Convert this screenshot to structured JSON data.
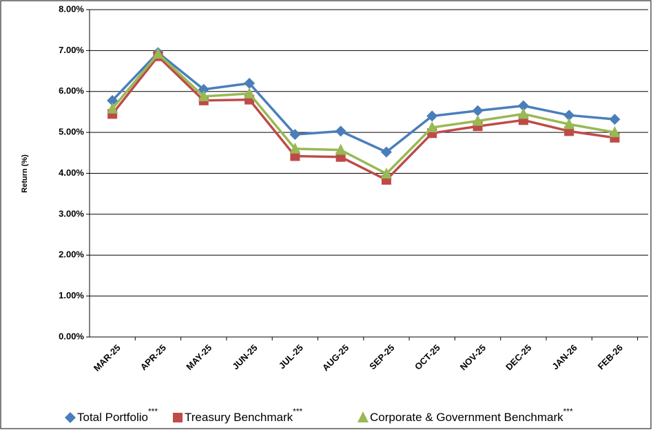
{
  "chart_data": {
    "type": "line",
    "y_label": "Return (%)",
    "categories": [
      "MAR-25",
      "APR-25",
      "MAY-25",
      "JUN-25",
      "JUL-25",
      "AUG-25",
      "SEP-25",
      "OCT-25",
      "NOV-25",
      "DEC-25",
      "JAN-26",
      "FEB-26"
    ],
    "series": [
      {
        "name": "Total Portfolio",
        "color": "#4a7ebb",
        "marker": "diamond",
        "values": [
          5.78,
          6.95,
          6.05,
          6.2,
          4.95,
          5.03,
          4.52,
          5.4,
          5.53,
          5.65,
          5.42,
          5.32
        ]
      },
      {
        "name": "Treasury Benchmark",
        "color": "#be4b48",
        "marker": "square",
        "values": [
          5.45,
          6.86,
          5.78,
          5.8,
          4.42,
          4.4,
          3.84,
          4.98,
          5.15,
          5.3,
          5.03,
          4.87
        ]
      },
      {
        "name": "Corporate & Government Benchmark",
        "color": "#98b954",
        "marker": "triangle",
        "values": [
          5.58,
          6.92,
          5.88,
          5.95,
          4.6,
          4.57,
          3.99,
          5.12,
          5.28,
          5.45,
          5.2,
          5.0
        ]
      }
    ],
    "legend_superscript": "***",
    "ylim": [
      0,
      8
    ],
    "yticks": [
      {
        "value": 0,
        "label": "0.00%"
      },
      {
        "value": 1,
        "label": "1.00%"
      },
      {
        "value": 2,
        "label": "2.00%"
      },
      {
        "value": 3,
        "label": "3.00%"
      },
      {
        "value": 4,
        "label": "4.00%"
      },
      {
        "value": 5,
        "label": "5.00%"
      },
      {
        "value": 6,
        "label": "6.00%"
      },
      {
        "value": 7,
        "label": "7.00%"
      },
      {
        "value": 8,
        "label": "8.00%"
      }
    ],
    "grid": true
  }
}
